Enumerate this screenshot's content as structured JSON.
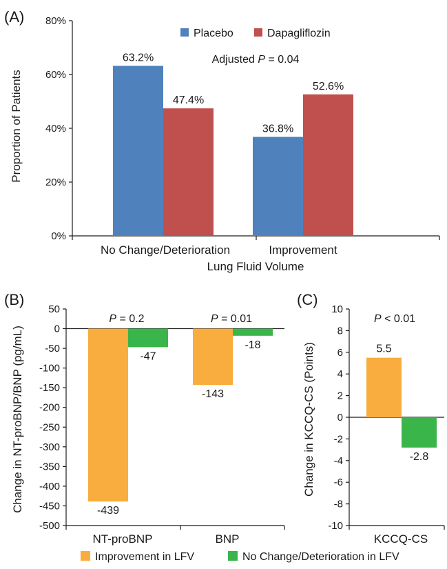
{
  "chart_data": [
    {
      "panel": "(A)",
      "type": "bar",
      "xlabel": "Lung Fluid Volume",
      "ylabel": "Proportion of Patients",
      "categories": [
        "No Change/Deterioration",
        "Improvement"
      ],
      "series": [
        {
          "name": "Placebo",
          "values": [
            63.2,
            36.8
          ],
          "labels": [
            "63.2%",
            "36.8%"
          ],
          "color": "#4f81bd"
        },
        {
          "name": "Dapagliflozin",
          "values": [
            47.4,
            52.6
          ],
          "labels": [
            "47.4%",
            "52.6%"
          ],
          "color": "#c0504d"
        }
      ],
      "ylim": [
        0,
        80
      ],
      "yticks": [
        0,
        20,
        40,
        60,
        80
      ],
      "ytick_labels": [
        "0%",
        "20%",
        "40%",
        "60%",
        "80%"
      ],
      "annotation": {
        "prefix": "Adjusted ",
        "italic": "P",
        "suffix": " = 0.04"
      },
      "legend": "top-right"
    },
    {
      "panel": "(B)",
      "type": "bar",
      "ylabel": "Change in NT-proBNP/BNP (pg/mL)",
      "categories": [
        "NT-proBNP",
        "BNP"
      ],
      "series": [
        {
          "name": "Improvement in LFV",
          "values": [
            -439,
            -143
          ],
          "labels": [
            "-439",
            "-143"
          ],
          "color": "#f9ad3e"
        },
        {
          "name": "No Change/Deterioration in LFV",
          "values": [
            -47,
            -18
          ],
          "labels": [
            "-47",
            "-18"
          ],
          "color": "#3ab54a"
        }
      ],
      "ylim": [
        -500,
        50
      ],
      "yticks": [
        50,
        0,
        -50,
        -100,
        -150,
        -200,
        -250,
        -300,
        -350,
        -400,
        -450,
        -500
      ],
      "ytick_labels": [
        "50",
        "0",
        "-50",
        "-100",
        "-150",
        "-200",
        "-250",
        "-300",
        "-350",
        "-400",
        "-450",
        "-500"
      ],
      "annotations": [
        {
          "italic": "P",
          "suffix": " = 0.2"
        },
        {
          "italic": "P",
          "suffix": " = 0.01"
        }
      ]
    },
    {
      "panel": "(C)",
      "type": "bar",
      "ylabel": "Change in KCCQ-CS (Points)",
      "categories": [
        "KCCQ-CS"
      ],
      "series": [
        {
          "name": "Improvement in LFV",
          "values": [
            5.5
          ],
          "labels": [
            "5.5"
          ],
          "color": "#f9ad3e"
        },
        {
          "name": "No Change/Deterioration in LFV",
          "values": [
            -2.8
          ],
          "labels": [
            "-2.8"
          ],
          "color": "#3ab54a"
        }
      ],
      "ylim": [
        -10,
        10
      ],
      "yticks": [
        10,
        8,
        6,
        4,
        2,
        0,
        -2,
        -4,
        -6,
        -8,
        -10
      ],
      "ytick_labels": [
        "10",
        "8",
        "6",
        "4",
        "2",
        "0",
        "-2",
        "-4",
        "-6",
        "-8",
        "-10"
      ],
      "annotation": {
        "italic": "P",
        "suffix": " <  0.01"
      }
    }
  ],
  "legend_bottom": {
    "items": [
      "Improvement in LFV",
      "No Change/Deterioration in LFV"
    ],
    "colors": [
      "#f9ad3e",
      "#3ab54a"
    ]
  }
}
